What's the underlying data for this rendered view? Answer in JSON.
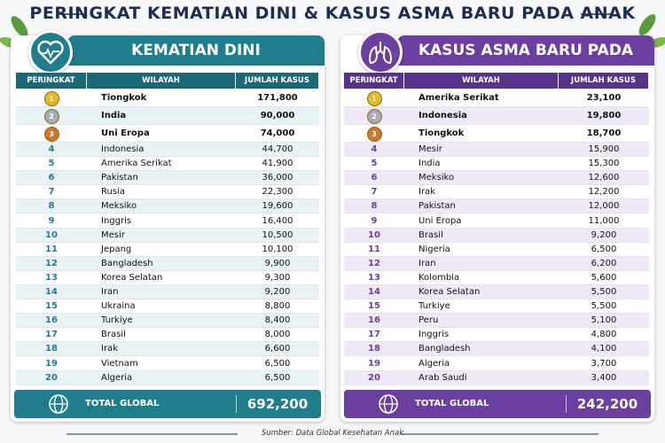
{
  "header": {
    "title": "PERINGKAT KEMATIAN DINI & KASUS ASMA BARU PADA ANAK"
  },
  "panels": [
    {
      "heading": "KEMATIAN DINI",
      "columns": [
        "PERINGKAT",
        "WILAYAH",
        "JUMLAH KASUS"
      ],
      "rows": [
        [
          "1",
          "Tiongkok",
          "171,800"
        ],
        [
          "2",
          "India",
          "90,000"
        ],
        [
          "3",
          "Uni Eropa",
          "74,000"
        ],
        [
          "4",
          "Indonesia",
          "44,700"
        ],
        [
          "5",
          "Amerika Serikat",
          "41,900"
        ],
        [
          "6",
          "Pakistan",
          "36,000"
        ],
        [
          "7",
          "Rusia",
          "22,300"
        ],
        [
          "8",
          "Meksiko",
          "19,600"
        ],
        [
          "9",
          "Inggris",
          "16,400"
        ],
        [
          "10",
          "Mesir",
          "10,500"
        ],
        [
          "11",
          "Jepang",
          "10,100"
        ],
        [
          "12",
          "Bangladesh",
          "9,900"
        ],
        [
          "13",
          "Korea Selatan",
          "9,300"
        ],
        [
          "14",
          "Iran",
          "9,200"
        ],
        [
          "15",
          "Ukraina",
          "8,800"
        ],
        [
          "16",
          "Turkiye",
          "8,400"
        ],
        [
          "17",
          "Brasil",
          "8,000"
        ],
        [
          "18",
          "Irak",
          "6,600"
        ],
        [
          "19",
          "Vietnam",
          "6,500"
        ],
        [
          "20",
          "Algeria",
          "6,500"
        ]
      ],
      "total_label": "TOTAL GLOBAL",
      "total_value": "692,200"
    },
    {
      "heading": "KASUS ASMA BARU PADA ANAK",
      "columns": [
        "PERINGKAT",
        "WILAYAH",
        "JUMLAH KASUS"
      ],
      "rows": [
        [
          "1",
          "Amerika Serikat",
          "23,100"
        ],
        [
          "2",
          "Indonesia",
          "19,800"
        ],
        [
          "3",
          "Tiongkok",
          "18,700"
        ],
        [
          "4",
          "Mesir",
          "15,900"
        ],
        [
          "5",
          "India",
          "15,300"
        ],
        [
          "6",
          "Meksiko",
          "12,600"
        ],
        [
          "7",
          "Irak",
          "12,200"
        ],
        [
          "8",
          "Pakistan",
          "12,000"
        ],
        [
          "9",
          "Uni Eropa",
          "11,000"
        ],
        [
          "10",
          "Brasil",
          "9,200"
        ],
        [
          "11",
          "Nigeria",
          "6,500"
        ],
        [
          "12",
          "Iran",
          "6,200"
        ],
        [
          "13",
          "Kolombia",
          "5,600"
        ],
        [
          "14",
          "Korea Selatan",
          "5,500"
        ],
        [
          "15",
          "Turkiye",
          "5,500"
        ],
        [
          "16",
          "Peru",
          "5,100"
        ],
        [
          "17",
          "Inggris",
          "4,800"
        ],
        [
          "18",
          "Bangladesh",
          "4,100"
        ],
        [
          "19",
          "Algeria",
          "3,700"
        ],
        [
          "20",
          "Arab Saudi",
          "3,400"
        ]
      ],
      "total_label": "TOTAL GLOBAL",
      "total_value": "242,200"
    }
  ],
  "footer": {
    "source": "Sumber: Data Global Kesehatan Anak"
  }
}
